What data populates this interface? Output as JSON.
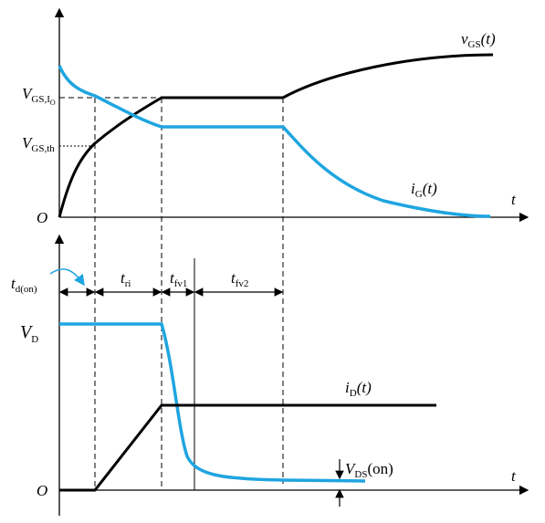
{
  "top_plot": {
    "origin": "O",
    "time_axis": "t",
    "gate_voltage": {
      "symbol": "v",
      "subscript": "GS",
      "argument": "(t)"
    },
    "gate_current": {
      "symbol": "i",
      "subscript": "G",
      "argument": "(t)"
    },
    "plateau_level": {
      "symbol": "V",
      "subscript": "GS,I",
      "sub_subscript": "O"
    },
    "threshold_level": {
      "symbol": "V",
      "subscript": "GS,th"
    }
  },
  "intervals": [
    {
      "symbol": "t",
      "subscript": "d(on)"
    },
    {
      "symbol": "t",
      "subscript": "ri"
    },
    {
      "symbol": "t",
      "subscript": "fv1"
    },
    {
      "symbol": "t",
      "subscript": "fv2"
    }
  ],
  "bottom_plot": {
    "origin": "O",
    "time_axis": "t",
    "supply_voltage": {
      "symbol": "V",
      "subscript": "D"
    },
    "drain_current": {
      "symbol": "i",
      "subscript": "D",
      "argument": "(t)"
    },
    "on_voltage": {
      "symbol": "V",
      "subscript": "DS",
      "argument": "(on)"
    }
  }
}
